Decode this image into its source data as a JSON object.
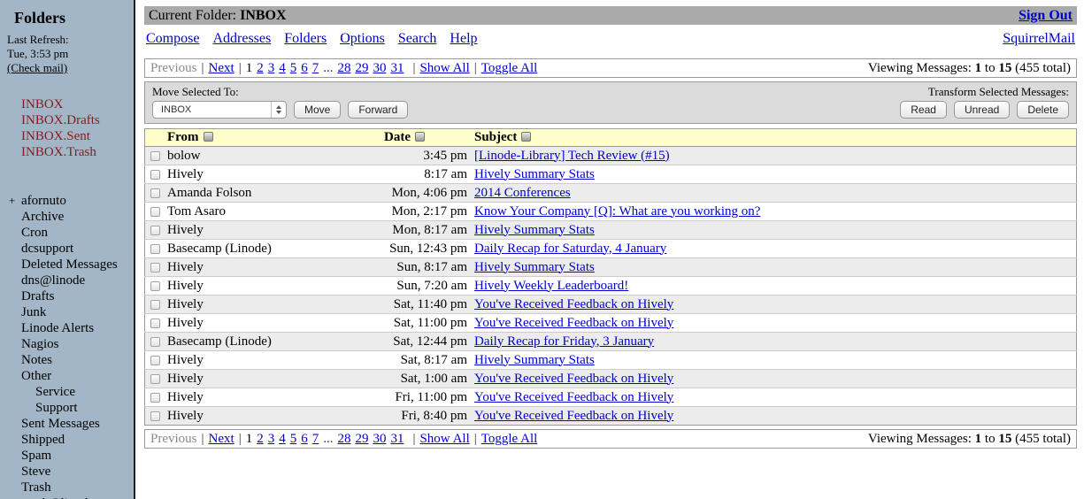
{
  "colors": {
    "sidebar_bg": "#A2B6C8",
    "topbar_bg": "#AAAAAA",
    "header_row_bg": "#FFFFCC",
    "alt_row_bg": "#ECECEC",
    "link_blue": "#0000CC",
    "folder_maroon": "#8B1A1A"
  },
  "sidebar": {
    "title": "Folders",
    "last_refresh_label": "Last Refresh:",
    "last_refresh_time": "Tue, 3:53 pm",
    "check_mail": "(Check mail)",
    "special_folders": [
      "INBOX",
      "INBOX.Drafts",
      "INBOX.Sent",
      "INBOX.Trash"
    ],
    "folders": [
      {
        "label": "afornuto",
        "prefix": "+",
        "indent": 0
      },
      {
        "label": "Archive",
        "indent": 0
      },
      {
        "label": "Cron",
        "indent": 0
      },
      {
        "label": "dcsupport",
        "indent": 0
      },
      {
        "label": "Deleted Messages",
        "indent": 0
      },
      {
        "label": "dns@linode",
        "indent": 0
      },
      {
        "label": "Drafts",
        "indent": 0
      },
      {
        "label": "Junk",
        "indent": 0
      },
      {
        "label": "Linode Alerts",
        "indent": 0
      },
      {
        "label": "Nagios",
        "indent": 0
      },
      {
        "label": "Notes",
        "indent": 0
      },
      {
        "label": "Other",
        "indent": 0
      },
      {
        "label": "Service",
        "indent": 1
      },
      {
        "label": "Support",
        "indent": 1
      },
      {
        "label": "Sent Messages",
        "indent": 0
      },
      {
        "label": "Shipped",
        "indent": 0
      },
      {
        "label": "Spam",
        "indent": 0
      },
      {
        "label": "Steve",
        "indent": 0
      },
      {
        "label": "Trash",
        "indent": 0
      },
      {
        "label": "work@linode",
        "indent": 0
      }
    ]
  },
  "header": {
    "current_folder_label": "Current Folder:",
    "current_folder": "INBOX",
    "sign_out": "Sign Out",
    "menu": [
      "Compose",
      "Addresses",
      "Folders",
      "Options",
      "Search",
      "Help"
    ],
    "brand": "SquirrelMail"
  },
  "pagination": {
    "previous": "Previous",
    "next": "Next",
    "separator": "|",
    "current_page": "1",
    "pages_before": [
      "2",
      "3",
      "4",
      "5",
      "6",
      "7"
    ],
    "ellipsis": "...",
    "pages_after": [
      "28",
      "29",
      "30",
      "31"
    ],
    "show_all": "Show All",
    "toggle_all": "Toggle All",
    "viewing_label": "Viewing Messages:",
    "from": "1",
    "to_word": "to",
    "to": "15",
    "total": "(455 total)"
  },
  "toolbar": {
    "move_label": "Move Selected To:",
    "folder_select": "INBOX",
    "move": "Move",
    "forward": "Forward",
    "transform_label": "Transform Selected Messages:",
    "read": "Read",
    "unread": "Unread",
    "delete": "Delete"
  },
  "message_table": {
    "columns": [
      "From",
      "Date",
      "Subject"
    ],
    "messages": [
      {
        "from": "bolow",
        "date": "3:45 pm",
        "subject": "[Linode-Library] Tech Review (#15)"
      },
      {
        "from": "Hively",
        "date": "8:17 am",
        "subject": "Hively Summary Stats"
      },
      {
        "from": "Amanda Folson",
        "date": "Mon, 4:06 pm",
        "subject": "2014 Conferences"
      },
      {
        "from": "Tom Asaro",
        "date": "Mon, 2:17 pm",
        "subject": "Know Your Company [Q]: What are you working on?"
      },
      {
        "from": "Hively",
        "date": "Mon, 8:17 am",
        "subject": "Hively Summary Stats"
      },
      {
        "from": "Basecamp (Linode)",
        "date": "Sun, 12:43 pm",
        "subject": "Daily Recap for Saturday, 4 January"
      },
      {
        "from": "Hively",
        "date": "Sun, 8:17 am",
        "subject": "Hively Summary Stats"
      },
      {
        "from": "Hively",
        "date": "Sun, 7:20 am",
        "subject": "Hively Weekly Leaderboard!"
      },
      {
        "from": "Hively",
        "date": "Sat, 11:40 pm",
        "subject": "You've Received Feedback on Hively"
      },
      {
        "from": "Hively",
        "date": "Sat, 11:00 pm",
        "subject": "You've Received Feedback on Hively"
      },
      {
        "from": "Basecamp (Linode)",
        "date": "Sat, 12:44 pm",
        "subject": "Daily Recap for Friday, 3 January"
      },
      {
        "from": "Hively",
        "date": "Sat, 8:17 am",
        "subject": "Hively Summary Stats"
      },
      {
        "from": "Hively",
        "date": "Sat, 1:00 am",
        "subject": "You've Received Feedback on Hively"
      },
      {
        "from": "Hively",
        "date": "Fri, 11:00 pm",
        "subject": "You've Received Feedback on Hively"
      },
      {
        "from": "Hively",
        "date": "Fri, 8:40 pm",
        "subject": "You've Received Feedback on Hively"
      }
    ]
  }
}
